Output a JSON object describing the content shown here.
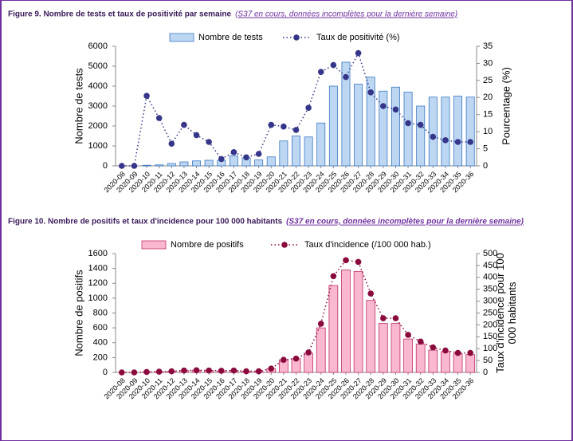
{
  "chart_data": [
    {
      "type": "bar_line",
      "title": "Figure 9. Nombre de tests et taux de positivité par semaine",
      "subtitle": "(S37 en cours, données incomplètes pour la dernière semaine)",
      "ylabel": "Nombre de tests",
      "y2label": [
        "Pourcentage (%)"
      ],
      "categories": [
        "2020-08",
        "2020-09",
        "2020-10",
        "2020-11",
        "2020-12",
        "2020-13",
        "2020-14",
        "2020-15",
        "2020-16",
        "2020-17",
        "2020-18",
        "2020-19",
        "2020-20",
        "2020-21",
        "2020-22",
        "2020-23",
        "2020-24",
        "2020-25",
        "2020-26",
        "2020-27",
        "2020-28",
        "2020-29",
        "2020-30",
        "2020-31",
        "2020-32",
        "2020-33",
        "2020-34",
        "2020-35",
        "2020-36"
      ],
      "series": [
        {
          "name": "Nombre de tests",
          "color": "#bdd7f3",
          "values": [
            0,
            0,
            30,
            50,
            120,
            200,
            250,
            280,
            280,
            500,
            400,
            300,
            450,
            1250,
            1500,
            1450,
            2150,
            4000,
            5200,
            4100,
            4450,
            3750,
            3950,
            3700,
            3000,
            3450,
            3450,
            3500,
            3450
          ]
        },
        {
          "name": "Taux de positivité (%)",
          "color": "#35358a",
          "axis": "y2",
          "values": [
            0,
            0,
            20.5,
            14,
            6.5,
            12,
            9,
            7,
            2,
            4,
            2.5,
            3.5,
            12,
            11.5,
            10.5,
            17,
            27.5,
            29.5,
            26,
            33,
            21.5,
            17.5,
            16.5,
            12.5,
            12,
            8.5,
            7.5,
            7,
            7
          ]
        }
      ],
      "ylim": [
        0,
        6000
      ],
      "yticks": [
        0,
        1000,
        2000,
        3000,
        4000,
        5000,
        6000
      ],
      "y2lim": [
        0,
        35
      ],
      "y2ticks": [
        0,
        5,
        10,
        15,
        20,
        25,
        30,
        35
      ]
    },
    {
      "type": "bar_line",
      "title": "Figure 10. Nombre de positifs et taux d'incidence pour 100 000 habitants",
      "subtitle": "(S37 en cours, données incomplètes pour la dernière semaine)",
      "ylabel": "Nombre de positifs",
      "y2label": [
        "Taux d'incidence pour 100",
        "000 habitants"
      ],
      "categories": [
        "2020-08",
        "2020-09",
        "2020-10",
        "2020-11",
        "2020-12",
        "2020-13",
        "2020-14",
        "2020-15",
        "2020-16",
        "2020-17",
        "2020-18",
        "2020-19",
        "2020-20",
        "2020-21",
        "2020-22",
        "2020-23",
        "2020-24",
        "2020-25",
        "2020-26",
        "2020-27",
        "2020-28",
        "2020-29",
        "2020-30",
        "2020-31",
        "2020-32",
        "2020-33",
        "2020-34",
        "2020-35",
        "2020-36"
      ],
      "series": [
        {
          "name": "Nombre de positifs",
          "color": "#f9b8cf",
          "values": [
            0,
            0,
            5,
            10,
            15,
            25,
            30,
            25,
            20,
            25,
            15,
            15,
            50,
            170,
            185,
            260,
            600,
            1170,
            1380,
            1360,
            970,
            660,
            660,
            450,
            380,
            300,
            280,
            250,
            240
          ]
        },
        {
          "name": "Taux d'incidence (/100 000 hab.)",
          "color": "#8b0a3e",
          "axis": "y2",
          "values": [
            0,
            0,
            2,
            3,
            5,
            8,
            9,
            8,
            7,
            8,
            5,
            5,
            16,
            53,
            58,
            84,
            205,
            405,
            472,
            465,
            332,
            228,
            228,
            158,
            130,
            105,
            92,
            82,
            82
          ]
        }
      ],
      "ylim": [
        0,
        1600
      ],
      "yticks": [
        0,
        200,
        400,
        600,
        800,
        1000,
        1200,
        1400,
        1600
      ],
      "y2lim": [
        0,
        500
      ],
      "y2ticks": [
        0,
        50,
        100,
        150,
        200,
        250,
        300,
        350,
        400,
        450,
        500
      ]
    }
  ]
}
